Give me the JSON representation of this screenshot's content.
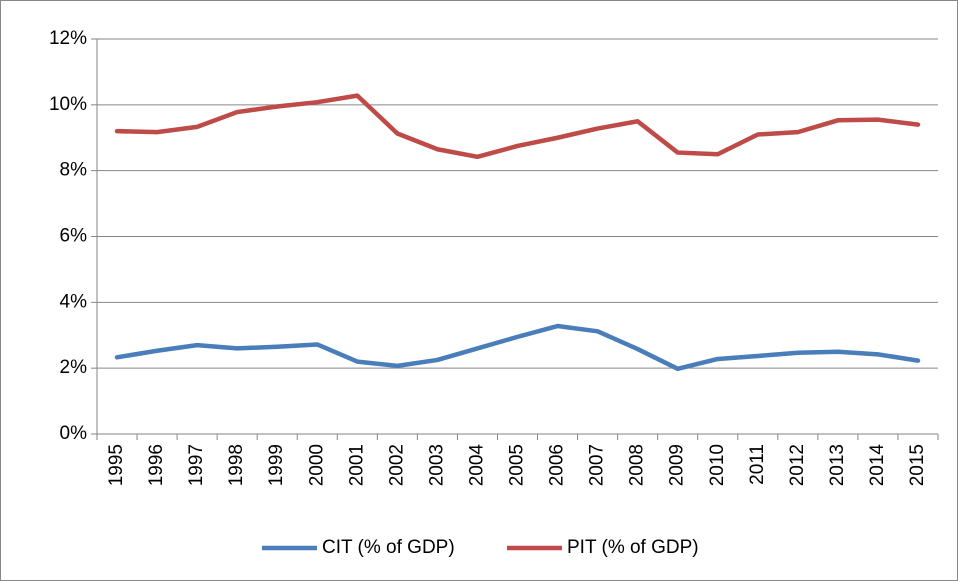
{
  "chart_data": {
    "type": "line",
    "categories": [
      "1995",
      "1996",
      "1997",
      "1998",
      "1999",
      "2000",
      "2001",
      "2002",
      "2003",
      "2004",
      "2005",
      "2006",
      "2007",
      "2008",
      "2009",
      "2010",
      "2011",
      "2012",
      "2013",
      "2014",
      "2015"
    ],
    "series": [
      {
        "name": "CIT (% of GDP)",
        "color": "#4a7ebb",
        "values": [
          2.33,
          2.53,
          2.7,
          2.6,
          2.65,
          2.72,
          2.2,
          2.07,
          2.25,
          2.6,
          2.95,
          3.28,
          3.12,
          2.58,
          1.98,
          2.28,
          2.37,
          2.47,
          2.5,
          2.42,
          2.23
        ]
      },
      {
        "name": "PIT (% of GDP)",
        "color": "#be4b48",
        "values": [
          9.2,
          9.17,
          9.33,
          9.78,
          9.95,
          10.08,
          10.28,
          9.13,
          8.65,
          8.42,
          8.75,
          9.0,
          9.28,
          9.5,
          8.55,
          8.5,
          9.1,
          9.17,
          9.53,
          9.55,
          9.4
        ]
      }
    ],
    "ylim": [
      0,
      12
    ],
    "yticks": [
      {
        "value": 0,
        "label": "0%"
      },
      {
        "value": 2,
        "label": "2%"
      },
      {
        "value": 4,
        "label": "4%"
      },
      {
        "value": 6,
        "label": "6%"
      },
      {
        "value": 8,
        "label": "8%"
      },
      {
        "value": 10,
        "label": "10%"
      },
      {
        "value": 12,
        "label": "12%"
      }
    ],
    "grid": true,
    "legend": "bottom"
  }
}
